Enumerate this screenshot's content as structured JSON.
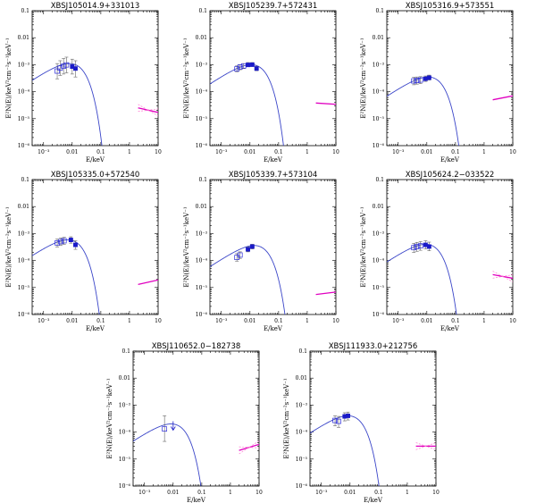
{
  "figure": {
    "colors": {
      "model": "#3a45c8",
      "optical": "#1a1ac8",
      "optical_points": "#2a2ad8",
      "xray": "#e000c0",
      "xray_dash": "#ff7ad0",
      "axis": "#000000"
    },
    "x_tick_labels": [
      "10⁻³",
      "0.01",
      "0.1",
      "1",
      "10"
    ],
    "y_tick_labels": [
      "0.1",
      "0.01",
      "10⁻³",
      "10⁻⁴",
      "10⁻⁵",
      "10⁻⁶"
    ],
    "xlabel": "E/keV",
    "ylabel": "E²N(E)/keV²cm⁻²s⁻¹keV⁻¹"
  },
  "chart_data": [
    {
      "type": "scatter",
      "title": "XBSJ105014.9+331013",
      "xscale": "log",
      "yscale": "log",
      "xlim": [
        0.0004,
        10
      ],
      "ylim": [
        1e-06,
        0.1
      ],
      "xlabel": "E/keV",
      "ylabel": "E²N(E)/keV²cm⁻²s⁻¹keV⁻¹",
      "model_peak": {
        "x": 0.008,
        "y": 0.0011
      },
      "open_points": [
        {
          "x": 0.003,
          "y": 0.00058,
          "err": [
            0.0003,
            0.0011
          ]
        },
        {
          "x": 0.0038,
          "y": 0.00075,
          "err": [
            0.0004,
            0.0014
          ]
        },
        {
          "x": 0.005,
          "y": 0.00088,
          "err": [
            0.00045,
            0.0017
          ]
        },
        {
          "x": 0.0063,
          "y": 0.00098,
          "err": [
            0.0005,
            0.0019
          ]
        }
      ],
      "filled_points": [
        {
          "x": 0.01,
          "y": 0.00085,
          "err": [
            0.00045,
            0.0016
          ]
        },
        {
          "x": 0.013,
          "y": 0.00072,
          "err": [
            0.00035,
            0.0014
          ]
        }
      ],
      "xray": {
        "x_range": [
          2,
          10
        ],
        "y_at_2": 2.5e-05,
        "y_at_10": 1.7e-05,
        "error_band": true
      }
    },
    {
      "type": "scatter",
      "title": "XBSJ105239.7+572431",
      "xscale": "log",
      "yscale": "log",
      "xlim": [
        0.0004,
        10
      ],
      "ylim": [
        1e-06,
        0.1
      ],
      "xlabel": "E/keV",
      "ylabel": "E²N(E)/keV²cm⁻²s⁻¹keV⁻¹",
      "model_peak": {
        "x": 0.011,
        "y": 0.001
      },
      "open_points": [
        {
          "x": 0.0035,
          "y": 0.0007,
          "err": [
            0.00055,
            0.0009
          ]
        },
        {
          "x": 0.0045,
          "y": 0.00082,
          "err": [
            0.00065,
            0.001
          ]
        },
        {
          "x": 0.006,
          "y": 0.0009,
          "err": [
            0.00072,
            0.0011
          ]
        }
      ],
      "filled_points": [
        {
          "x": 0.0085,
          "y": 0.00098,
          "err": [
            0.00085,
            0.0012
          ]
        },
        {
          "x": 0.012,
          "y": 0.001,
          "err": [
            0.00088,
            0.0012
          ]
        },
        {
          "x": 0.017,
          "y": 0.00072,
          "err": [
            0.0006,
            0.00088
          ]
        }
      ],
      "xray": {
        "x_range": [
          2,
          10
        ],
        "y_at_2": 3.8e-05,
        "y_at_10": 3.4e-05,
        "error_band": false
      }
    },
    {
      "type": "scatter",
      "title": "XBSJ105316.9+573551",
      "xscale": "log",
      "yscale": "log",
      "xlim": [
        0.0004,
        10
      ],
      "ylim": [
        1e-06,
        0.1
      ],
      "xlabel": "E/keV",
      "ylabel": "E²N(E)/keV²cm⁻²s⁻¹keV⁻¹",
      "model_peak": {
        "x": 0.011,
        "y": 0.00035
      },
      "open_points": [
        {
          "x": 0.0035,
          "y": 0.00025,
          "err": [
            0.00018,
            0.00034
          ]
        },
        {
          "x": 0.0045,
          "y": 0.00026,
          "err": [
            0.00019,
            0.00035
          ]
        },
        {
          "x": 0.006,
          "y": 0.00027,
          "err": [
            0.0002,
            0.00036
          ]
        }
      ],
      "filled_points": [
        {
          "x": 0.009,
          "y": 0.0003,
          "err": [
            0.00024,
            0.00038
          ]
        },
        {
          "x": 0.012,
          "y": 0.00033,
          "err": [
            0.00027,
            0.00041
          ]
        }
      ],
      "xray": {
        "x_range": [
          2,
          10
        ],
        "y_at_2": 5e-05,
        "y_at_10": 7e-05,
        "error_band": false
      }
    },
    {
      "type": "scatter",
      "title": "XBSJ105335.0+572540",
      "xscale": "log",
      "yscale": "log",
      "xlim": [
        0.0004,
        10
      ],
      "ylim": [
        1e-06,
        0.1
      ],
      "xlabel": "E/keV",
      "ylabel": "E²N(E)/keV²cm⁻²s⁻¹keV⁻¹",
      "model_peak": {
        "x": 0.007,
        "y": 0.00058
      },
      "open_points": [
        {
          "x": 0.003,
          "y": 0.00045,
          "err": [
            0.00032,
            0.00062
          ]
        },
        {
          "x": 0.004,
          "y": 0.0005,
          "err": [
            0.00036,
            0.00068
          ]
        },
        {
          "x": 0.0052,
          "y": 0.00054,
          "err": [
            0.0004,
            0.00072
          ]
        }
      ],
      "filled_points": [
        {
          "x": 0.009,
          "y": 0.00058,
          "err": [
            0.00044,
            0.00076
          ]
        },
        {
          "x": 0.013,
          "y": 0.00038,
          "err": [
            0.00026,
            0.00054
          ]
        }
      ],
      "xray": {
        "x_range": [
          2,
          10
        ],
        "y_at_2": 1.3e-05,
        "y_at_10": 1.9e-05,
        "error_band": false
      }
    },
    {
      "type": "scatter",
      "title": "XBSJ105339.7+573104",
      "xscale": "log",
      "yscale": "log",
      "xlim": [
        0.0004,
        10
      ],
      "ylim": [
        1e-06,
        0.1
      ],
      "xlabel": "E/keV",
      "ylabel": "E²N(E)/keV²cm⁻²s⁻¹keV⁻¹",
      "model_peak": {
        "x": 0.014,
        "y": 0.00036
      },
      "open_points": [
        {
          "x": 0.0035,
          "y": 0.00013,
          "err": [
            9.5e-05,
            0.00018
          ]
        },
        {
          "x": 0.0045,
          "y": 0.00016,
          "err": [
            0.00012,
            0.00021
          ]
        }
      ],
      "filled_points": [
        {
          "x": 0.0085,
          "y": 0.00026,
          "err": [
            0.00021,
            0.00032
          ]
        },
        {
          "x": 0.012,
          "y": 0.00033,
          "err": [
            0.00027,
            0.0004
          ]
        }
      ],
      "xray": {
        "x_range": [
          2,
          10
        ],
        "y_at_2": 5.5e-06,
        "y_at_10": 6.8e-06,
        "error_band": false
      }
    },
    {
      "type": "scatter",
      "title": "XBSJ105624.2−033522",
      "xscale": "log",
      "yscale": "log",
      "xlim": [
        0.0004,
        10
      ],
      "ylim": [
        1e-06,
        0.1
      ],
      "xlabel": "E/keV",
      "ylabel": "E²N(E)/keV²cm⁻²s⁻¹keV⁻¹",
      "model_peak": {
        "x": 0.009,
        "y": 0.0004
      },
      "open_points": [
        {
          "x": 0.0035,
          "y": 0.0003,
          "err": [
            0.0002,
            0.00043
          ]
        },
        {
          "x": 0.0045,
          "y": 0.00033,
          "err": [
            0.00022,
            0.00047
          ]
        },
        {
          "x": 0.006,
          "y": 0.00035,
          "err": [
            0.00024,
            0.0005
          ]
        }
      ],
      "filled_points": [
        {
          "x": 0.009,
          "y": 0.00038,
          "err": [
            0.00027,
            0.00054
          ]
        },
        {
          "x": 0.012,
          "y": 0.00033,
          "err": [
            0.00023,
            0.00048
          ]
        }
      ],
      "xray": {
        "x_range": [
          2,
          10
        ],
        "y_at_2": 3e-05,
        "y_at_10": 2.2e-05,
        "error_band": true
      }
    },
    {
      "type": "scatter",
      "title": "XBSJ110652.0−182738",
      "xscale": "log",
      "yscale": "log",
      "xlim": [
        0.0004,
        10
      ],
      "ylim": [
        1e-06,
        0.1
      ],
      "xlabel": "E/keV",
      "ylabel": "E²N(E)/keV²cm⁻²s⁻¹keV⁻¹",
      "model_peak": {
        "x": 0.0085,
        "y": 0.0002
      },
      "open_points": [
        {
          "x": 0.005,
          "y": 0.00013,
          "err": [
            4.5e-05,
            0.0004
          ]
        }
      ],
      "filled_points": [],
      "upper_limits": [
        {
          "x": 0.01,
          "y": 0.0002
        }
      ],
      "xray": {
        "x_range": [
          2,
          10
        ],
        "y_at_2": 2.1e-05,
        "y_at_10": 3.5e-05,
        "error_band": true
      }
    },
    {
      "type": "scatter",
      "title": "XBSJ111933.0+212756",
      "xscale": "log",
      "yscale": "log",
      "xlim": [
        0.0004,
        10
      ],
      "ylim": [
        1e-06,
        0.1
      ],
      "xlabel": "E/keV",
      "ylabel": "E²N(E)/keV²cm⁻²s⁻¹keV⁻¹",
      "model_peak": {
        "x": 0.0085,
        "y": 0.0004
      },
      "open_points": [
        {
          "x": 0.003,
          "y": 0.00027,
          "err": [
            0.00017,
            0.0004
          ]
        },
        {
          "x": 0.004,
          "y": 0.00025,
          "err": [
            0.00015,
            0.00038
          ]
        }
      ],
      "filled_points": [
        {
          "x": 0.0065,
          "y": 0.00038,
          "err": [
            0.00026,
            0.00052
          ]
        },
        {
          "x": 0.0085,
          "y": 0.0004,
          "err": [
            0.00028,
            0.00055
          ]
        }
      ],
      "xray": {
        "x_range": [
          2,
          10
        ],
        "y_at_2": 3e-05,
        "y_at_10": 3e-05,
        "error_band": true
      }
    }
  ]
}
